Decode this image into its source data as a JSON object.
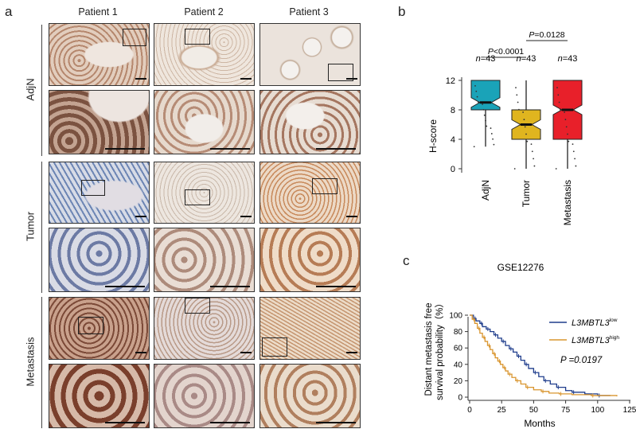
{
  "panel_letters": {
    "a": "a",
    "b": "b",
    "c": "c"
  },
  "panel_a": {
    "columns": [
      "Patient 1",
      "Patient 2",
      "Patient 3"
    ],
    "rows": [
      "AdjN",
      "Tumor",
      "Metastasis"
    ]
  },
  "chart_data": [
    {
      "type": "box",
      "ylabel": "H-score",
      "ylim": [
        0,
        12
      ],
      "yticks": [
        0,
        4,
        8,
        12
      ],
      "categories": [
        "AdjN",
        "Tumor",
        "Metastasis"
      ],
      "colors": [
        "#1aa3b8",
        "#e0b51f",
        "#e8202a"
      ],
      "n_labels": [
        "n=43",
        "n=43",
        "n=43"
      ],
      "boxes": [
        {
          "min": 3,
          "q1": 8,
          "median": 9,
          "q3": 12,
          "max": 12
        },
        {
          "min": 0,
          "q1": 4,
          "median": 6,
          "q3": 8,
          "max": 12
        },
        {
          "min": 0,
          "q1": 4,
          "median": 8,
          "q3": 12,
          "max": 12
        }
      ],
      "comparisons": [
        {
          "pair": [
            "AdjN",
            "Tumor"
          ],
          "label": "P<0.0001"
        },
        {
          "pair": [
            "Tumor",
            "Metastasis"
          ],
          "label": "P=0.0128"
        }
      ]
    },
    {
      "type": "line",
      "title": "GSE12276",
      "xlabel": "Months",
      "ylabel": "Distant metastasis free survival probability（%）",
      "xlim": [
        0,
        125
      ],
      "ylim": [
        0,
        100
      ],
      "xticks": [
        0,
        25,
        50,
        75,
        100,
        125
      ],
      "yticks": [
        0,
        20,
        40,
        60,
        80,
        100
      ],
      "annotation": "P =0.0197",
      "series": [
        {
          "name": "L3MBTL3",
          "superscript": "low",
          "color": "#1f3d8c",
          "x": [
            0,
            3,
            5,
            8,
            10,
            13,
            16,
            19,
            22,
            25,
            28,
            31,
            34,
            37,
            40,
            43,
            46,
            50,
            54,
            58,
            63,
            68,
            75,
            80,
            90,
            100,
            110
          ],
          "y": [
            100,
            96,
            93,
            90,
            86,
            83,
            80,
            76,
            72,
            68,
            63,
            59,
            55,
            50,
            45,
            40,
            35,
            30,
            25,
            20,
            16,
            12,
            8,
            6,
            4,
            2,
            2
          ]
        },
        {
          "name": "L3MBTL3",
          "superscript": "high",
          "color": "#d9952e",
          "x": [
            0,
            2,
            4,
            6,
            8,
            10,
            12,
            14,
            16,
            18,
            20,
            22,
            24,
            26,
            28,
            30,
            33,
            36,
            40,
            44,
            50,
            56,
            62,
            70,
            80,
            95,
            115
          ],
          "y": [
            100,
            95,
            90,
            84,
            78,
            73,
            68,
            63,
            58,
            53,
            48,
            44,
            40,
            36,
            32,
            28,
            24,
            20,
            16,
            12,
            9,
            7,
            5,
            4,
            3,
            2,
            1
          ]
        }
      ]
    }
  ]
}
